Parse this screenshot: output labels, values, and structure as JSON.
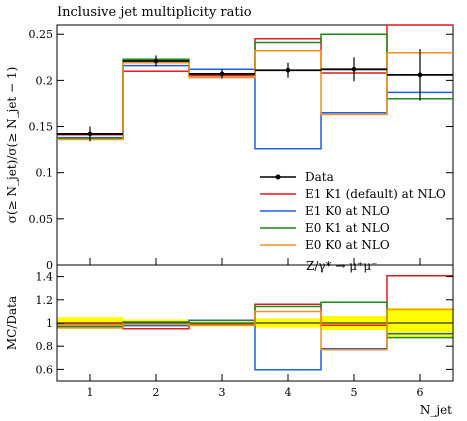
{
  "chart_data": {
    "type": "line",
    "title": "Inclusive jet multiplicity ratio",
    "xlabel": "N_jet",
    "ylabel": "σ(≥ N_jet)/σ(≥ N_jet − 1)",
    "ratio_ylabel": "MC/Data",
    "process_label": "Z/γ* → μ⁺μ⁻",
    "xlim": [
      0.5,
      6.5
    ],
    "ylim": [
      0,
      0.26
    ],
    "ratio_ylim": [
      0.5,
      1.5
    ],
    "x_ticks": [
      1,
      2,
      3,
      4,
      5,
      6
    ],
    "y_ticks": [
      0,
      0.05,
      0.1,
      0.15,
      0.2,
      0.25
    ],
    "y_tick_labels": [
      "0",
      "0.05",
      "0.1",
      "0.15",
      "0.2",
      "0.25"
    ],
    "ratio_ticks": [
      0.6,
      0.8,
      1,
      1.2,
      1.4
    ],
    "ratio_tick_labels": [
      "0.6",
      "0.8",
      "1",
      "1.2",
      "1.4"
    ],
    "bin_edges": [
      0.5,
      1.5,
      2.5,
      3.5,
      4.5,
      5.5,
      6.5
    ],
    "legend_position": "lower-right",
    "data": {
      "name": "Data",
      "x": [
        1,
        2,
        3,
        4,
        5,
        6
      ],
      "y": [
        0.142,
        0.221,
        0.207,
        0.211,
        0.212,
        0.206
      ],
      "err": [
        0.008,
        0.006,
        0.005,
        0.008,
        0.013,
        0.028
      ],
      "color": "#000000",
      "band_ratio": [
        0.05,
        0.03,
        0.03,
        0.04,
        0.06,
        0.13
      ],
      "band_color": "#ffff00"
    },
    "series": [
      {
        "name": "E1 K1 (default) at NLO",
        "color": "#e41a1c",
        "values": [
          0.141,
          0.21,
          0.205,
          0.245,
          0.208,
          0.29
        ]
      },
      {
        "name": "E1 K0 at NLO",
        "color": "#1f5fe0",
        "values": [
          0.138,
          0.216,
          0.212,
          0.126,
          0.165,
          0.187
        ]
      },
      {
        "name": "E0 K1 at NLO",
        "color": "#1a8a1a",
        "values": [
          0.137,
          0.223,
          0.207,
          0.241,
          0.25,
          0.18
        ]
      },
      {
        "name": "E0 K0 at NLO",
        "color": "#f0921c",
        "values": [
          0.136,
          0.219,
          0.203,
          0.232,
          0.163,
          0.23
        ]
      }
    ]
  }
}
